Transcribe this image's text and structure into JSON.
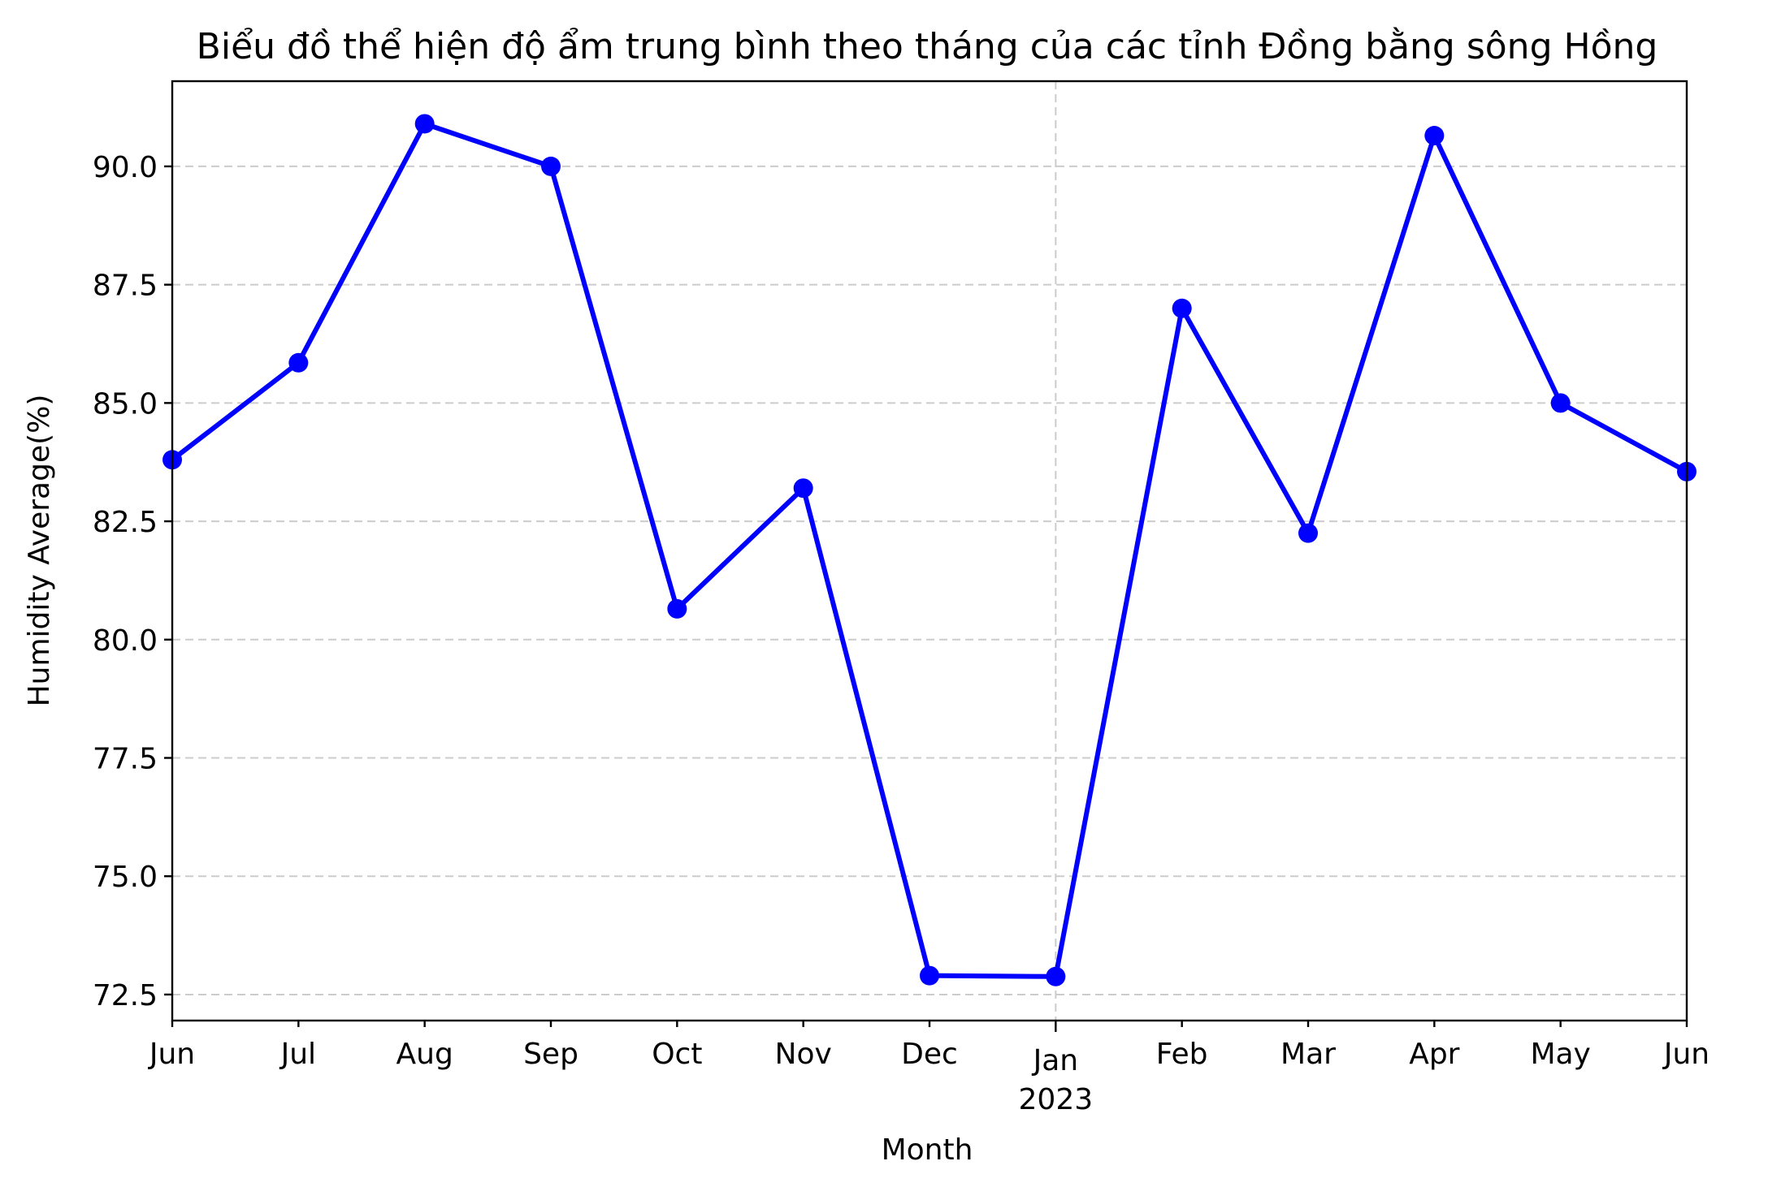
{
  "chart_data": {
    "type": "line",
    "title": "Biểu đồ thể hiện độ ẩm trung bình theo tháng của các tỉnh Đồng bằng sông Hồng",
    "xlabel": "Month",
    "ylabel": "Humidity Average(%)",
    "x": [
      "2022-06",
      "2022-07",
      "2022-08",
      "2022-09",
      "2022-10",
      "2022-11",
      "2022-12",
      "2023-01",
      "2023-02",
      "2023-03",
      "2023-04",
      "2023-05",
      "2023-06"
    ],
    "x_tick_labels": [
      "Jun",
      "Jul",
      "Aug",
      "Sep",
      "Oct",
      "Nov",
      "Dec",
      "Jan",
      "Feb",
      "Mar",
      "Apr",
      "May",
      "Jun"
    ],
    "x_year_label": "2023",
    "series": [
      {
        "name": "",
        "values": [
          83.8,
          85.85,
          90.9,
          90.0,
          80.65,
          83.2,
          72.9,
          72.88,
          87.0,
          82.25,
          90.65,
          85.0,
          83.55
        ],
        "color": "#0000ff",
        "marker": "circle"
      }
    ],
    "ylim": [
      71.95,
      91.8
    ],
    "yticks": [
      72.5,
      75.0,
      77.5,
      80.0,
      82.5,
      85.0,
      87.5,
      90.0
    ],
    "ytick_labels": [
      "72.5",
      "75.0",
      "77.5",
      "80.0",
      "82.5",
      "85.0",
      "87.5",
      "90.0"
    ],
    "grid": "y-dashed-plus-jan-vertical",
    "grid_color": "#cccccc"
  }
}
